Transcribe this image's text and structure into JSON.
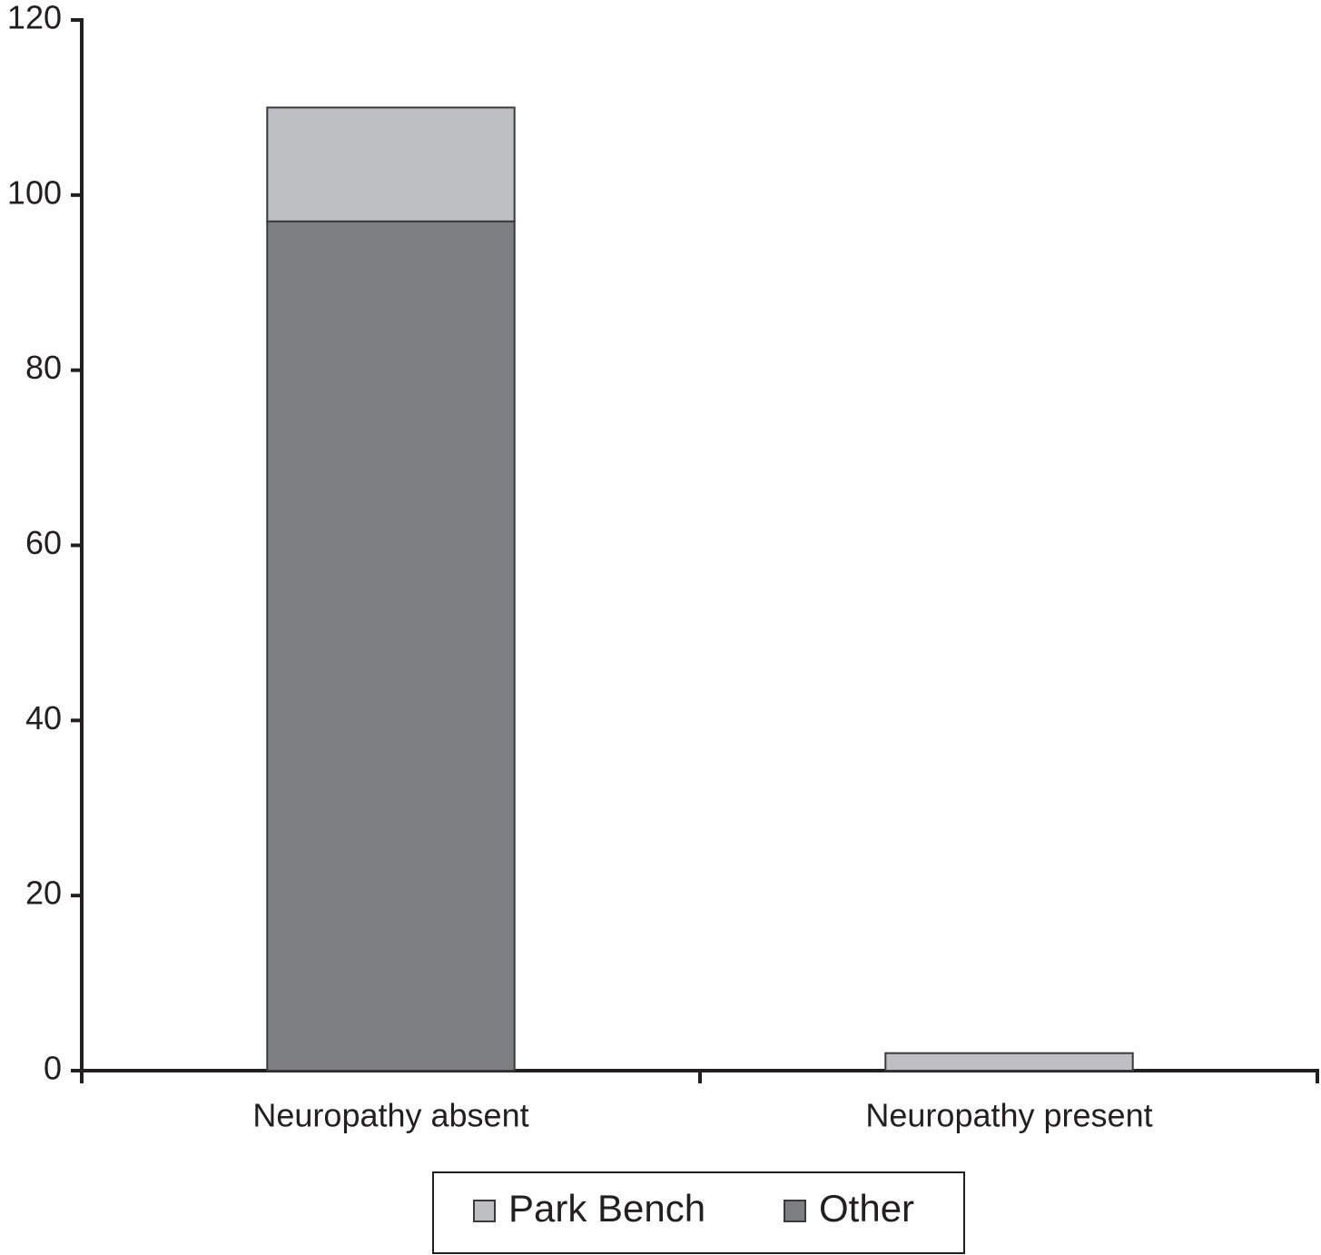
{
  "chart_data": {
    "type": "stacked_bar",
    "categories": [
      "Neuropathy absent",
      "Neuropathy present"
    ],
    "series": [
      {
        "name": "Park Bench",
        "color": "#bebfc2",
        "values": [
          13,
          2
        ]
      },
      {
        "name": "Other",
        "color": "#7e7f83",
        "values": [
          97,
          0
        ]
      }
    ],
    "ylim": [
      0,
      120
    ],
    "yticks": [
      0,
      20,
      40,
      60,
      80,
      100,
      120
    ],
    "grid": false
  }
}
